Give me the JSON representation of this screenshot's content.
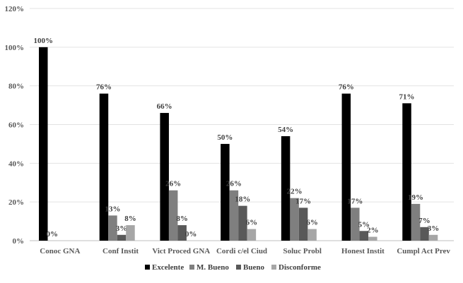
{
  "chart_data": {
    "type": "bar",
    "categories": [
      "Conoc GNA",
      "Conf Instit",
      "Vict Proced GNA",
      "Cordi c/el Ciud",
      "Soluc Probl",
      "Honest Instit",
      "Cumpl Act Prev"
    ],
    "series": [
      {
        "name": "Excelente",
        "color": "#000000",
        "values": [
          100,
          76,
          66,
          50,
          54,
          76,
          71
        ],
        "labels": [
          "100%",
          "76%",
          "66%",
          "50%",
          "54%",
          "76%",
          "71%"
        ]
      },
      {
        "name": "M. Bueno",
        "color": "#7f7f7f",
        "values": [
          0,
          13,
          26,
          26,
          22,
          17,
          19
        ],
        "labels": [
          "0%",
          "13%",
          "26%",
          "26%",
          "22%",
          "17%",
          "19%"
        ]
      },
      {
        "name": "Bueno",
        "color": "#595959",
        "values": [
          null,
          3,
          8,
          18,
          17,
          5,
          7
        ],
        "labels": [
          "",
          "3%",
          "8%",
          "18%",
          "17%",
          "5%",
          "7%"
        ]
      },
      {
        "name": "Disconforme",
        "color": "#a6a6a6",
        "values": [
          null,
          8,
          0,
          6,
          6,
          2,
          3
        ],
        "labels": [
          "",
          "8%",
          "0%",
          "6%",
          "6%",
          "2%",
          "3%"
        ]
      }
    ],
    "yticks": [
      "0%",
      "20%",
      "40%",
      "60%",
      "80%",
      "100%",
      "120%"
    ],
    "ylim": [
      0,
      120
    ],
    "grid": true,
    "legend": "bottom"
  }
}
